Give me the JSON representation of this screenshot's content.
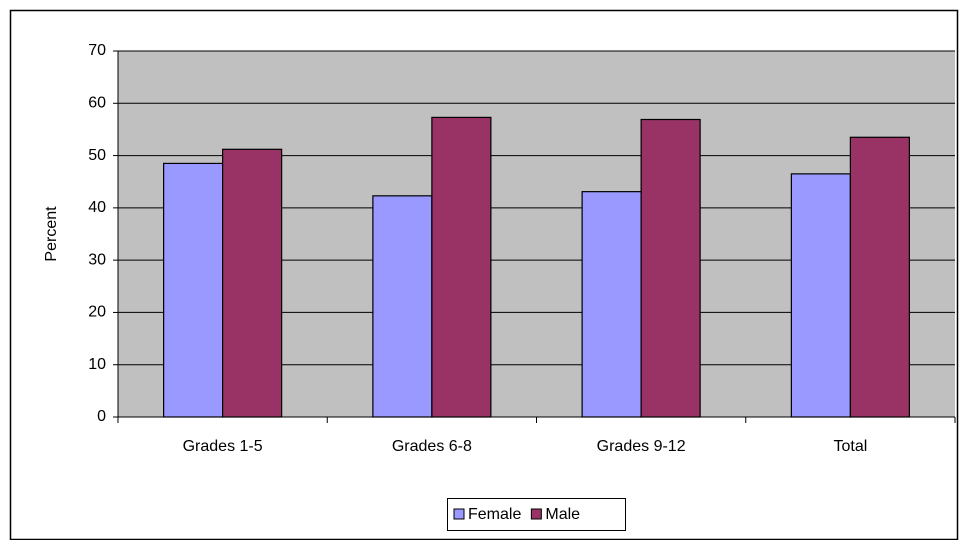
{
  "chart_data": {
    "type": "bar",
    "categories": [
      "Grades 1-5",
      "Grades 6-8",
      "Grades 9-12",
      "Total"
    ],
    "series": [
      {
        "name": "Female",
        "color": "#9999ff",
        "values": [
          48.5,
          42.3,
          43.1,
          46.5
        ]
      },
      {
        "name": "Male",
        "color": "#993366",
        "values": [
          51.2,
          57.3,
          56.9,
          53.5
        ]
      }
    ],
    "ylabel": "Percent",
    "ylim": [
      0,
      70
    ],
    "yticks": [
      0,
      10,
      20,
      30,
      40,
      50,
      60,
      70
    ],
    "grid": true,
    "legend": "bottom"
  }
}
